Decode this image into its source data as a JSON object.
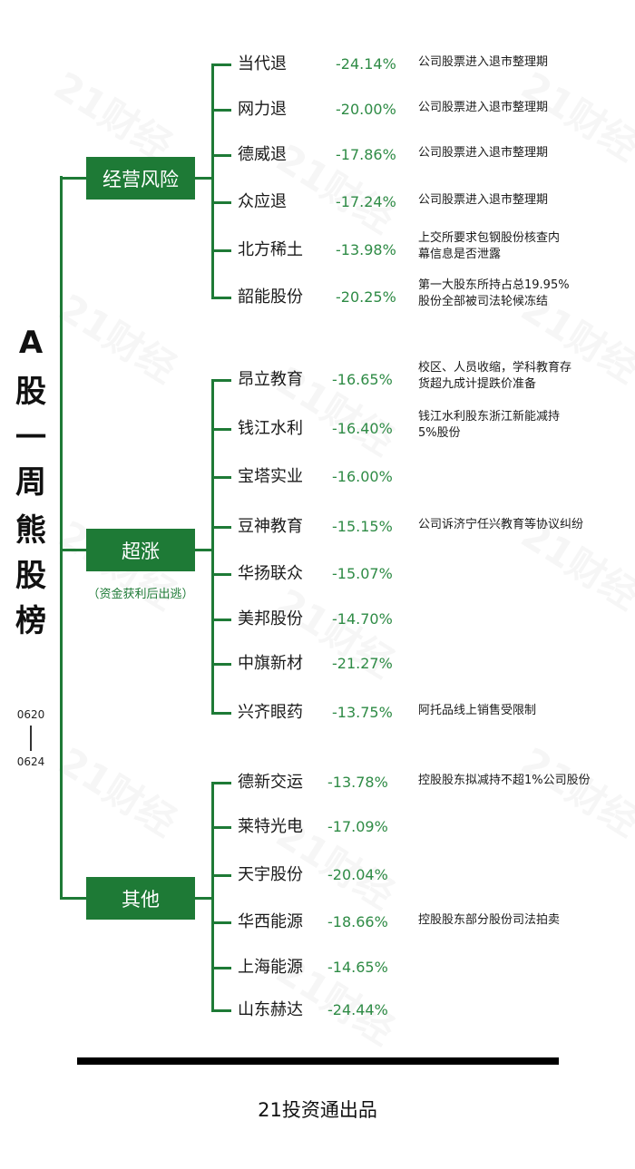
{
  "title_chars": [
    "A",
    "股",
    "一",
    "周",
    "熊",
    "股",
    "榜"
  ],
  "date_start": "0620",
  "date_end": "0624",
  "watermark": "21财经",
  "categories": [
    {
      "label": "经营风险",
      "note": "",
      "items": [
        {
          "name": "当代退",
          "pct": "-24.14%",
          "note": "公司股票进入退市整理期"
        },
        {
          "name": "网力退",
          "pct": "-20.00%",
          "note": "公司股票进入退市整理期"
        },
        {
          "name": "德威退",
          "pct": "-17.86%",
          "note": "公司股票进入退市整理期"
        },
        {
          "name": "众应退",
          "pct": "-17.24%",
          "note": "公司股票进入退市整理期"
        },
        {
          "name": "北方稀土",
          "pct": "-13.98%",
          "note": "上交所要求包钢股份核查内\n幕信息是否泄露"
        },
        {
          "name": "韶能股份",
          "pct": "-20.25%",
          "note": "第一大股东所持占总19.95%\n股份全部被司法轮候冻结"
        }
      ]
    },
    {
      "label": "超涨",
      "note": "（资金获利后出逃）",
      "items": [
        {
          "name": "昂立教育",
          "pct": "-16.65%",
          "note": "校区、人员收缩，学科教育存\n货超九成计提跌价准备"
        },
        {
          "name": "钱江水利",
          "pct": "-16.40%",
          "note": "钱江水利股东浙江新能减持\n5%股份"
        },
        {
          "name": "宝塔实业",
          "pct": "-16.00%",
          "note": ""
        },
        {
          "name": "豆神教育",
          "pct": "-15.15%",
          "note": "公司诉济宁任兴教育等协议纠纷"
        },
        {
          "name": "华扬联众",
          "pct": "-15.07%",
          "note": ""
        },
        {
          "name": "美邦股份",
          "pct": "-14.70%",
          "note": ""
        },
        {
          "name": "中旗新材",
          "pct": "-21.27%",
          "note": ""
        },
        {
          "name": "兴齐眼药",
          "pct": "-13.75%",
          "note": "阿托品线上销售受限制"
        }
      ]
    },
    {
      "label": "其他",
      "note": "",
      "items": [
        {
          "name": "德新交运",
          "pct": "-13.78%",
          "note": "控股股东拟减持不超1%公司股份"
        },
        {
          "name": "莱特光电",
          "pct": "-17.09%",
          "note": ""
        },
        {
          "name": "天宇股份",
          "pct": "-20.04%",
          "note": ""
        },
        {
          "name": "华西能源",
          "pct": "-18.66%",
          "note": "控股股东部分股份司法拍卖"
        },
        {
          "name": "上海能源",
          "pct": "-14.65%",
          "note": ""
        },
        {
          "name": "山东赫达",
          "pct": "-24.44%",
          "note": ""
        }
      ]
    }
  ],
  "footer": "21投资通出品",
  "colors": {
    "accent": "#1e7a36",
    "pct": "#2e8b45",
    "text": "#1a1a1a"
  }
}
